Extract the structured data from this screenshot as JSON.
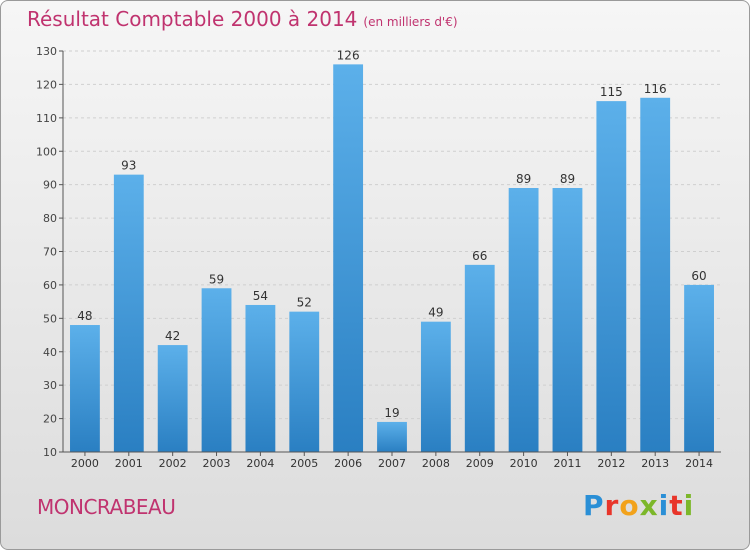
{
  "header": {
    "title": "Résultat Comptable 2000 à 2014",
    "subtitle": "(en milliers d'€)"
  },
  "footer": {
    "commune": "MONCRABEAU",
    "logo_letters": [
      "P",
      "r",
      "o",
      "x",
      "i",
      "t",
      "i"
    ],
    "logo_colors": [
      "#2a8fd6",
      "#e8352a",
      "#f2a21b",
      "#7cb72a",
      "#2a8fd6",
      "#e8352a",
      "#7cb72a"
    ]
  },
  "colors": {
    "title": "#c0336f",
    "bar_top": "#5cb0ea",
    "bar_bottom": "#2a7fc2",
    "axis": "#555555",
    "grid": "#cfcfcf"
  },
  "chart_data": {
    "type": "bar",
    "title": "Résultat Comptable 2000 à 2014",
    "subtitle": "(en milliers d'€)",
    "categories": [
      "2000",
      "2001",
      "2002",
      "2003",
      "2004",
      "2005",
      "2006",
      "2007",
      "2008",
      "2009",
      "2010",
      "2011",
      "2012",
      "2013",
      "2014"
    ],
    "values": [
      48,
      93,
      42,
      59,
      54,
      52,
      126,
      19,
      49,
      66,
      89,
      89,
      115,
      116,
      60
    ],
    "ylim": [
      10,
      130
    ],
    "yticks": [
      10,
      20,
      30,
      40,
      50,
      60,
      70,
      80,
      90,
      100,
      110,
      120,
      130
    ],
    "xlabel": "",
    "ylabel": "",
    "grid": true,
    "legend": "none"
  }
}
